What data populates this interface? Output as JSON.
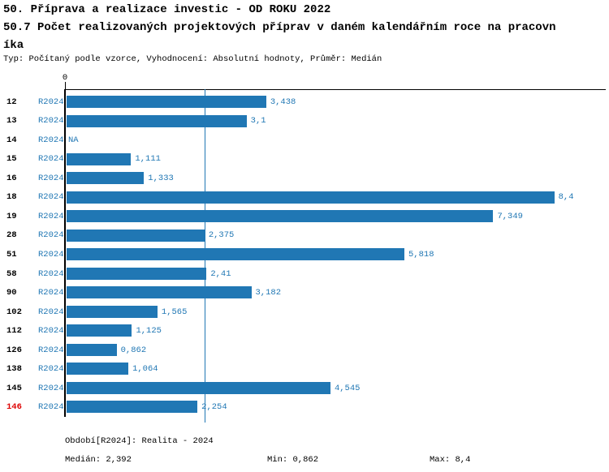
{
  "header": {
    "title": "50. Příprava a realizace investic - OD ROKU 2022",
    "subtitle_line1": "50.7 Počet realizovaných projektových příprav v daném kalendářním roce na pracovn",
    "subtitle_line2": "íka",
    "meta": "Typ: Počítaný podle vzorce, Vyhodnocení: Absolutní hodnoty, Průměr: Medián"
  },
  "chart_data": {
    "type": "bar",
    "orientation": "horizontal",
    "title": "50.7 Počet realizovaných projektových příprav v daném kalendářním roce na pracovníka",
    "axis_zero_label": "0",
    "xlim": [
      0,
      9.3
    ],
    "grid": "median-line-only",
    "median_value": 2.392,
    "categories": [
      "12",
      "13",
      "14",
      "15",
      "16",
      "18",
      "19",
      "28",
      "51",
      "58",
      "90",
      "102",
      "112",
      "126",
      "138",
      "145",
      "146"
    ],
    "series": [
      {
        "name": "R2024",
        "values": [
          3.438,
          3.1,
          null,
          1.111,
          1.333,
          8.4,
          7.349,
          2.375,
          5.818,
          2.41,
          3.182,
          1.565,
          1.125,
          0.862,
          1.064,
          4.545,
          2.254
        ]
      }
    ],
    "rows": [
      {
        "id": "12",
        "period": "R2024",
        "value": 3.438,
        "label": "3,438",
        "id_color": "black"
      },
      {
        "id": "13",
        "period": "R2024",
        "value": 3.1,
        "label": "3,1",
        "id_color": "black"
      },
      {
        "id": "14",
        "period": "R2024",
        "value": null,
        "label": "NA",
        "id_color": "black"
      },
      {
        "id": "15",
        "period": "R2024",
        "value": 1.111,
        "label": "1,111",
        "id_color": "black"
      },
      {
        "id": "16",
        "period": "R2024",
        "value": 1.333,
        "label": "1,333",
        "id_color": "black"
      },
      {
        "id": "18",
        "period": "R2024",
        "value": 8.4,
        "label": "8,4",
        "id_color": "black"
      },
      {
        "id": "19",
        "period": "R2024",
        "value": 7.349,
        "label": "7,349",
        "id_color": "black"
      },
      {
        "id": "28",
        "period": "R2024",
        "value": 2.375,
        "label": "2,375",
        "id_color": "black"
      },
      {
        "id": "51",
        "period": "R2024",
        "value": 5.818,
        "label": "5,818",
        "id_color": "black"
      },
      {
        "id": "58",
        "period": "R2024",
        "value": 2.41,
        "label": "2,41",
        "id_color": "black"
      },
      {
        "id": "90",
        "period": "R2024",
        "value": 3.182,
        "label": "3,182",
        "id_color": "black"
      },
      {
        "id": "102",
        "period": "R2024",
        "value": 1.565,
        "label": "1,565",
        "id_color": "black"
      },
      {
        "id": "112",
        "period": "R2024",
        "value": 1.125,
        "label": "1,125",
        "id_color": "black"
      },
      {
        "id": "126",
        "period": "R2024",
        "value": 0.862,
        "label": "0,862",
        "id_color": "black"
      },
      {
        "id": "138",
        "period": "R2024",
        "value": 1.064,
        "label": "1,064",
        "id_color": "black"
      },
      {
        "id": "145",
        "period": "R2024",
        "value": 4.545,
        "label": "4,545",
        "id_color": "black"
      },
      {
        "id": "146",
        "period": "R2024",
        "value": 2.254,
        "label": "2,254",
        "id_color": "red"
      }
    ],
    "colors": {
      "bar": "#2077b4",
      "text_blue": "#2077b4",
      "highlight_red": "#dd0000",
      "axis": "#000000"
    }
  },
  "footer": {
    "period_line": "Období[R2024]: Realita - 2024",
    "median": "Medián: 2,392",
    "min": "Min: 0,862",
    "max": "Max: 8,4"
  }
}
